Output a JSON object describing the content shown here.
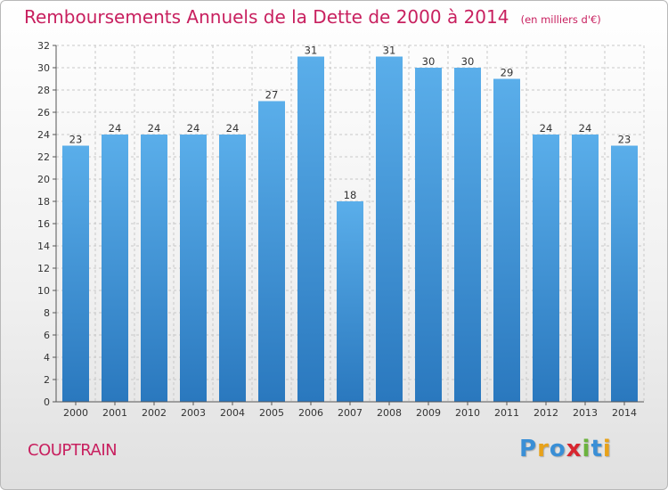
{
  "title": "Remboursements Annuels de la Dette de 2000 à 2014",
  "subtitle": "(en milliers d'€)",
  "commune": "COUPTRAIN",
  "brand": {
    "text": "Proxiti",
    "letters": [
      {
        "char": "P",
        "color": "#3a8fd6"
      },
      {
        "char": "r",
        "color": "#e8a21a"
      },
      {
        "char": "o",
        "color": "#3a8fd6"
      },
      {
        "char": "x",
        "color": "#d8262f"
      },
      {
        "char": "i",
        "color": "#6cb33f"
      },
      {
        "char": "t",
        "color": "#3a8fd6"
      },
      {
        "char": "i",
        "color": "#e8a21a"
      }
    ]
  },
  "colors": {
    "title": "#c8205f",
    "bar_top": "#5aaeea",
    "bar_bottom": "#2a78be",
    "grid": "#c8c8c8",
    "axis_text": "#333333"
  },
  "chart_data": {
    "type": "bar",
    "categories": [
      "2000",
      "2001",
      "2002",
      "2003",
      "2004",
      "2005",
      "2006",
      "2007",
      "2008",
      "2009",
      "2010",
      "2011",
      "2012",
      "2013",
      "2014"
    ],
    "values": [
      23,
      24,
      24,
      24,
      24,
      27,
      31,
      18,
      31,
      30,
      30,
      29,
      24,
      24,
      23
    ],
    "ylim": [
      0,
      32
    ],
    "yticks": [
      0,
      2,
      4,
      6,
      8,
      10,
      12,
      14,
      16,
      18,
      20,
      22,
      24,
      26,
      28,
      30,
      32
    ],
    "grid": true,
    "grid_style": "dashed",
    "legend": "none"
  }
}
